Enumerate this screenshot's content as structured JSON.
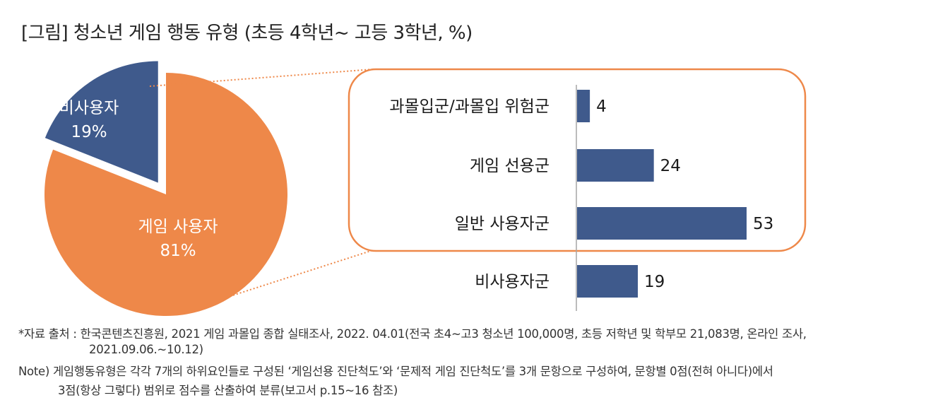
{
  "title": "[그림] 청소년 게임 행동 유형 (초등 4학년~ 고등 3학년, %)",
  "chart_data": [
    {
      "type": "pie",
      "slices": [
        {
          "label": "게임 사용자",
          "value": 81,
          "value_label": "81%",
          "color": "#ee8849"
        },
        {
          "label": "비사용자",
          "value": 19,
          "value_label": "19%",
          "color": "#3f5a8c"
        }
      ]
    },
    {
      "type": "bar",
      "orientation": "horizontal",
      "categories": [
        "과몰입군/과몰입 위험군",
        "게임 선용군",
        "일반 사용자군",
        "비사용자군"
      ],
      "values": [
        4,
        24,
        53,
        19
      ],
      "color": "#3f5a8c",
      "highlight_box_color": "#ee8849"
    }
  ],
  "notes": {
    "source_line1": "*자료 출처 : 한국콘텐츠진흥원, 2021 게임 과몰입 종합 실태조사, 2022. 04.01(전국 초4~고3 청소년 100,000명, 초등 저학년 및 학부모 21,083명, 온라인 조사,",
    "source_line2": "2021.09.06.~10.12)",
    "note_line1": "Note) 게임행동유형은 각각 7개의 하위요인들로 구성된 ‘게임선용 진단척도’와 ‘문제적 게임 진단척도’를 3개 문항으로 구성하여, 문항별 0점(전혀 아니다)에서",
    "note_line2": "3점(항상 그렇다) 범위로 점수를 산출하여 분류(보고서 p.15~16 참조)"
  }
}
